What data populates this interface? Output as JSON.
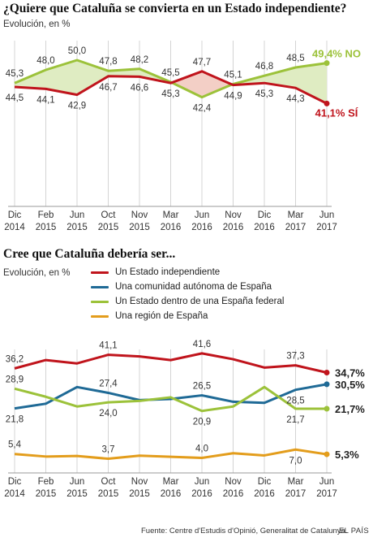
{
  "chart_data": [
    {
      "type": "line",
      "title": "¿Quiere que Cataluña se convierta en un Estado independiente?",
      "subtitle": "Evolución, en %",
      "categories": [
        [
          "Dic",
          "2014"
        ],
        [
          "Feb",
          "2015"
        ],
        [
          "Jun",
          "2015"
        ],
        [
          "Oct",
          "2015"
        ],
        [
          "Nov",
          "2015"
        ],
        [
          "Mar",
          "2016"
        ],
        [
          "Jun",
          "2016"
        ],
        [
          "Nov",
          "2016"
        ],
        [
          "Dic",
          "2016"
        ],
        [
          "Mar",
          "2017"
        ],
        [
          "Jun",
          "2017"
        ]
      ],
      "series": [
        {
          "name": "NO",
          "color": "#9cc23a",
          "values": [
            45.3,
            48.0,
            50.0,
            47.8,
            48.2,
            45.5,
            42.4,
            45.1,
            46.8,
            48.5,
            49.4
          ],
          "value_labels": [
            "45,3",
            "48,0",
            "50,0",
            "47,8",
            "48,2",
            "45,5",
            "42,4",
            "45,1",
            "46,8",
            "48,5"
          ],
          "end_label": "49,4% NO"
        },
        {
          "name": "SÍ",
          "color": "#c0141c",
          "values": [
            44.5,
            44.1,
            42.9,
            46.7,
            46.6,
            45.3,
            47.7,
            44.9,
            45.3,
            44.3,
            41.1
          ],
          "value_labels": [
            "44,5",
            "44,1",
            "42,9",
            "46,7",
            "46,6",
            "45,3",
            "47,7",
            "44,9",
            "45,3",
            "44,3"
          ],
          "end_label": "41,1% SÍ"
        }
      ],
      "ylim": [
        20,
        55
      ],
      "grid": "vertical",
      "fill_between": true
    },
    {
      "type": "line",
      "title": "Cree que Cataluña debería ser...",
      "subtitle": "Evolución, en %",
      "categories": [
        [
          "Dic",
          "2014"
        ],
        [
          "Feb",
          "2015"
        ],
        [
          "Jun",
          "2015"
        ],
        [
          "Oct",
          "2015"
        ],
        [
          "Nov",
          "2015"
        ],
        [
          "Mar",
          "2016"
        ],
        [
          "Jun",
          "2016"
        ],
        [
          "Nov",
          "2016"
        ],
        [
          "Dic",
          "2016"
        ],
        [
          "Mar",
          "2017"
        ],
        [
          "Jun",
          "2017"
        ]
      ],
      "series": [
        {
          "name": "Un Estado independiente",
          "color": "#c0141c",
          "values": [
            36.2,
            39.2,
            38.0,
            41.1,
            40.5,
            39.2,
            41.6,
            39.5,
            36.5,
            37.3,
            34.7
          ],
          "value_labels": [
            {
              "i": 0,
              "text": "36,2",
              "pos": "above"
            },
            {
              "i": 3,
              "text": "41,1",
              "pos": "above"
            },
            {
              "i": 6,
              "text": "41,6",
              "pos": "above"
            },
            {
              "i": 9,
              "text": "37,3",
              "pos": "above"
            }
          ],
          "end_label": "34,7%"
        },
        {
          "name": "Una comunidad autónoma de España",
          "color": "#1f6a96",
          "values": [
            21.8,
            23.5,
            29.5,
            27.4,
            24.8,
            25.2,
            26.5,
            24.2,
            23.8,
            28.5,
            30.5
          ],
          "value_labels": [
            {
              "i": 0,
              "text": "21,8",
              "pos": "below"
            },
            {
              "i": 3,
              "text": "27,4",
              "pos": "above"
            },
            {
              "i": 6,
              "text": "26,5",
              "pos": "above"
            },
            {
              "i": 9,
              "text": "28,5",
              "pos": "below"
            }
          ],
          "end_label": "30,5%"
        },
        {
          "name": "Un Estado dentro de una España federal",
          "color": "#9cc23a",
          "values": [
            28.9,
            26.0,
            22.5,
            24.0,
            24.5,
            25.8,
            20.9,
            22.5,
            29.5,
            21.7,
            21.7
          ],
          "value_labels": [
            {
              "i": 0,
              "text": "28,9",
              "pos": "above"
            },
            {
              "i": 3,
              "text": "24,0",
              "pos": "below"
            },
            {
              "i": 6,
              "text": "20,9",
              "pos": "below"
            },
            {
              "i": 9,
              "text": "21,7",
              "pos": "below"
            }
          ],
          "end_label": "21,7%"
        },
        {
          "name": "Una región de España",
          "color": "#e39d1c",
          "values": [
            5.4,
            4.5,
            4.7,
            3.7,
            4.8,
            4.4,
            4.0,
            5.7,
            4.9,
            7.0,
            5.3
          ],
          "value_labels": [
            {
              "i": 0,
              "text": "5,4",
              "pos": "above"
            },
            {
              "i": 3,
              "text": "3,7",
              "pos": "above"
            },
            {
              "i": 6,
              "text": "4,0",
              "pos": "above"
            },
            {
              "i": 9,
              "text": "7,0",
              "pos": "below"
            }
          ],
          "end_label": "5,3%"
        }
      ],
      "ylim": [
        -9,
        48
      ],
      "legend": "top",
      "grid": "vertical"
    }
  ],
  "source": "Fuente: Centre d'Estudis d'Opinió, Generalitat de Catalunya.",
  "brand": "EL PAÍS"
}
